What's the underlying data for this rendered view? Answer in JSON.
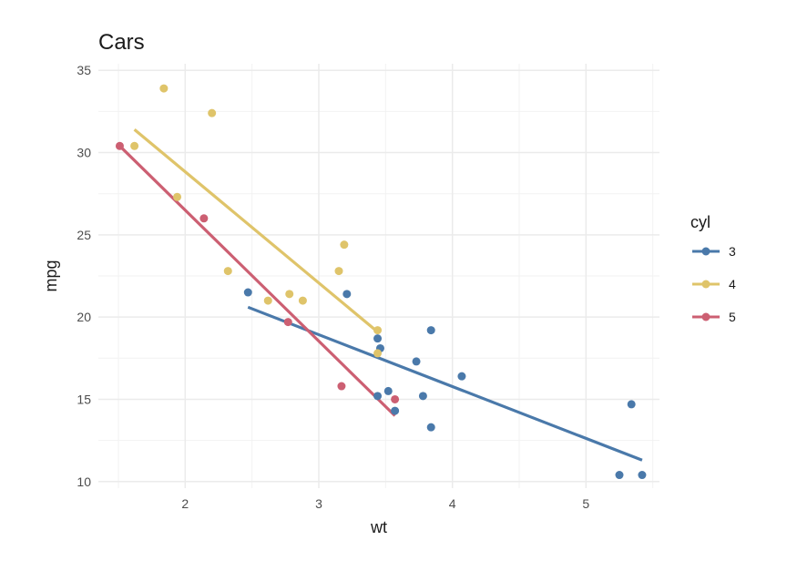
{
  "chart_data": {
    "type": "scatter",
    "title": "Cars",
    "xlabel": "wt",
    "ylabel": "mpg",
    "xlim": [
      1.35,
      5.55
    ],
    "ylim": [
      9.6,
      35.4
    ],
    "xticks": [
      2,
      3,
      4,
      5
    ],
    "yticks": [
      10,
      15,
      20,
      25,
      30,
      35
    ],
    "xtick_labels": [
      "2",
      "3",
      "4",
      "5"
    ],
    "ytick_labels": [
      "10",
      "15",
      "20",
      "25",
      "30",
      "35"
    ],
    "grid": true,
    "legend": {
      "title": "cyl",
      "placement": "right"
    },
    "series": [
      {
        "name": "3",
        "color": "#4a79aa",
        "points": [
          [
            2.47,
            21.5
          ],
          [
            3.44,
            18.7
          ],
          [
            3.46,
            18.1
          ],
          [
            3.21,
            21.4
          ],
          [
            3.73,
            17.3
          ],
          [
            3.84,
            19.2
          ],
          [
            3.78,
            15.2
          ],
          [
            4.07,
            16.4
          ],
          [
            3.57,
            14.3
          ],
          [
            3.52,
            15.5
          ],
          [
            3.44,
            15.2
          ],
          [
            3.84,
            13.3
          ],
          [
            5.25,
            10.4
          ],
          [
            5.42,
            10.4
          ],
          [
            5.34,
            14.7
          ]
        ],
        "fit": [
          [
            2.47,
            20.6
          ],
          [
            5.42,
            11.3
          ]
        ]
      },
      {
        "name": "4",
        "color": "#dfc46a",
        "points": [
          [
            1.84,
            33.9
          ],
          [
            2.2,
            32.4
          ],
          [
            1.62,
            30.4
          ],
          [
            1.94,
            27.3
          ],
          [
            2.32,
            22.8
          ],
          [
            3.19,
            24.4
          ],
          [
            3.15,
            22.8
          ],
          [
            2.62,
            21.0
          ],
          [
            2.78,
            21.4
          ],
          [
            2.88,
            21.0
          ],
          [
            3.44,
            19.2
          ],
          [
            3.44,
            17.8
          ]
        ],
        "fit": [
          [
            1.62,
            31.4
          ],
          [
            3.44,
            19.1
          ]
        ]
      },
      {
        "name": "5",
        "color": "#cc5f72",
        "points": [
          [
            1.51,
            30.4
          ],
          [
            2.14,
            26.0
          ],
          [
            2.77,
            19.7
          ],
          [
            3.17,
            15.8
          ],
          [
            3.57,
            15.0
          ]
        ],
        "fit": [
          [
            1.51,
            30.4
          ],
          [
            3.57,
            14.0
          ]
        ]
      }
    ]
  }
}
